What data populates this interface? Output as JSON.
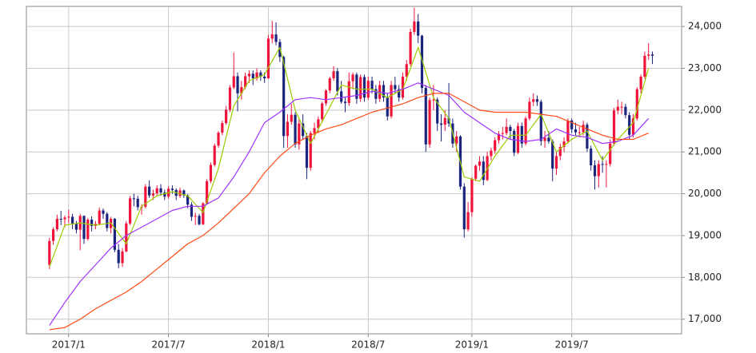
{
  "chart_data": {
    "type": "candlestick",
    "up_color": "#f0143c",
    "down_color": "#1a237e",
    "candles": [
      [
        18300,
        18950,
        18200,
        18870
      ],
      [
        18870,
        19200,
        18780,
        19150
      ],
      [
        19150,
        19500,
        19100,
        19400
      ],
      [
        19400,
        19590,
        19250,
        19390
      ],
      [
        19390,
        19480,
        19200,
        19430
      ],
      [
        19430,
        19620,
        19300,
        19450
      ],
      [
        19450,
        19520,
        19150,
        19290
      ],
      [
        19290,
        19350,
        19050,
        19140
      ],
      [
        19140,
        19520,
        18650,
        19470
      ],
      [
        19470,
        19480,
        18800,
        18920
      ],
      [
        18920,
        19420,
        18880,
        19380
      ],
      [
        19380,
        19460,
        19100,
        19230
      ],
      [
        19230,
        19350,
        19150,
        19280
      ],
      [
        19280,
        19670,
        19250,
        19600
      ],
      [
        19600,
        19650,
        19400,
        19520
      ],
      [
        19520,
        19560,
        19100,
        19180
      ],
      [
        19180,
        19450,
        19050,
        19400
      ],
      [
        19400,
        19420,
        18600,
        18660
      ],
      [
        18660,
        18800,
        18220,
        18340
      ],
      [
        18340,
        18700,
        18250,
        18620
      ],
      [
        18620,
        19350,
        18600,
        19290
      ],
      [
        19290,
        19950,
        19250,
        19890
      ],
      [
        19890,
        20000,
        19700,
        19880
      ],
      [
        19880,
        19950,
        19600,
        19680
      ],
      [
        19680,
        19750,
        19500,
        19690
      ],
      [
        19690,
        20230,
        19650,
        20170
      ],
      [
        20170,
        20320,
        19900,
        19960
      ],
      [
        19960,
        20100,
        19850,
        20010
      ],
      [
        20010,
        20200,
        19950,
        20130
      ],
      [
        20130,
        20230,
        19950,
        20030
      ],
      [
        20030,
        20100,
        19850,
        19930
      ],
      [
        19930,
        20180,
        19880,
        20120
      ],
      [
        20120,
        20200,
        20000,
        20090
      ],
      [
        20090,
        20130,
        19850,
        19950
      ],
      [
        19950,
        20150,
        19900,
        20080
      ],
      [
        20080,
        20100,
        19900,
        19960
      ],
      [
        19960,
        19990,
        19650,
        19740
      ],
      [
        19740,
        19800,
        19350,
        19450
      ],
      [
        19450,
        19550,
        19250,
        19470
      ],
      [
        19470,
        19520,
        19240,
        19270
      ],
      [
        19270,
        19800,
        19250,
        19770
      ],
      [
        19770,
        20350,
        19750,
        20300
      ],
      [
        20300,
        20750,
        20250,
        20690
      ],
      [
        20690,
        21200,
        20650,
        21150
      ],
      [
        21150,
        21500,
        21100,
        21460
      ],
      [
        21460,
        21750,
        21400,
        21690
      ],
      [
        21690,
        22100,
        21650,
        22010
      ],
      [
        22010,
        22600,
        21950,
        22540
      ],
      [
        22540,
        23380,
        22500,
        22810
      ],
      [
        22810,
        22900,
        21970,
        22400
      ],
      [
        22400,
        22700,
        22250,
        22550
      ],
      [
        22550,
        22900,
        22500,
        22810
      ],
      [
        22810,
        22950,
        22650,
        22870
      ],
      [
        22870,
        22950,
        22600,
        22760
      ],
      [
        22760,
        23000,
        22700,
        22900
      ],
      [
        22900,
        22950,
        22700,
        22800
      ],
      [
        22800,
        22900,
        22650,
        22760
      ],
      [
        22760,
        23800,
        22750,
        23710
      ],
      [
        23710,
        24130,
        23600,
        23810
      ],
      [
        23810,
        24100,
        23550,
        23630
      ],
      [
        23630,
        23700,
        23150,
        23270
      ],
      [
        23270,
        23300,
        21100,
        21380
      ],
      [
        21380,
        21900,
        21100,
        21720
      ],
      [
        21720,
        22150,
        21650,
        21890
      ],
      [
        21890,
        21950,
        21100,
        21180
      ],
      [
        21180,
        21800,
        21050,
        21680
      ],
      [
        21680,
        21900,
        21300,
        21380
      ],
      [
        21380,
        21450,
        20350,
        20620
      ],
      [
        20620,
        21500,
        20550,
        21450
      ],
      [
        21450,
        21700,
        21300,
        21570
      ],
      [
        21570,
        21850,
        21450,
        21780
      ],
      [
        21780,
        22200,
        21700,
        22160
      ],
      [
        22160,
        22500,
        22100,
        22470
      ],
      [
        22470,
        22800,
        22400,
        22760
      ],
      [
        22760,
        23050,
        22700,
        22930
      ],
      [
        22930,
        23000,
        22350,
        22450
      ],
      [
        22450,
        22700,
        22150,
        22200
      ],
      [
        22200,
        22300,
        21950,
        22170
      ],
      [
        22170,
        22900,
        22100,
        22690
      ],
      [
        22690,
        22900,
        22500,
        22850
      ],
      [
        22850,
        22900,
        22150,
        22270
      ],
      [
        22270,
        22850,
        22200,
        22790
      ],
      [
        22790,
        22850,
        22200,
        22300
      ],
      [
        22300,
        22800,
        22250,
        22700
      ],
      [
        22700,
        22800,
        22400,
        22500
      ],
      [
        22500,
        22600,
        22150,
        22270
      ],
      [
        22270,
        22700,
        22200,
        22600
      ],
      [
        22600,
        22700,
        22200,
        22300
      ],
      [
        22300,
        22400,
        21750,
        21850
      ],
      [
        21850,
        22700,
        21800,
        22600
      ],
      [
        22600,
        22800,
        22400,
        22500
      ],
      [
        22500,
        22600,
        22200,
        22300
      ],
      [
        22300,
        22900,
        22250,
        22800
      ],
      [
        22800,
        23200,
        22700,
        23100
      ],
      [
        23100,
        23950,
        23050,
        23870
      ],
      [
        23870,
        24450,
        23800,
        24120
      ],
      [
        24120,
        24300,
        23600,
        23780
      ],
      [
        23780,
        23800,
        22400,
        22530
      ],
      [
        22530,
        22600,
        21000,
        21180
      ],
      [
        21180,
        22300,
        21100,
        22240
      ],
      [
        22240,
        22600,
        22000,
        22250
      ],
      [
        22250,
        22300,
        21500,
        21680
      ],
      [
        21680,
        21900,
        21250,
        21650
      ],
      [
        21650,
        22000,
        21500,
        21810
      ],
      [
        21810,
        22650,
        21600,
        21680
      ],
      [
        21680,
        21800,
        21100,
        21200
      ],
      [
        21200,
        21500,
        21000,
        21370
      ],
      [
        21370,
        21400,
        20100,
        20170
      ],
      [
        20170,
        20250,
        18950,
        19150
      ],
      [
        19150,
        19800,
        19100,
        19560
      ],
      [
        19560,
        20400,
        19450,
        20360
      ],
      [
        20360,
        20700,
        20300,
        20670
      ],
      [
        20670,
        20900,
        20550,
        20770
      ],
      [
        20770,
        20900,
        20200,
        20330
      ],
      [
        20330,
        21000,
        20300,
        20900
      ],
      [
        20900,
        21100,
        20800,
        21030
      ],
      [
        21030,
        21350,
        20950,
        21280
      ],
      [
        21280,
        21500,
        21200,
        21430
      ],
      [
        21430,
        21600,
        21300,
        21450
      ],
      [
        21450,
        21800,
        21400,
        21600
      ],
      [
        21600,
        21650,
        21300,
        21500
      ],
      [
        21500,
        21550,
        20900,
        20980
      ],
      [
        20980,
        21700,
        20950,
        21620
      ],
      [
        21620,
        21700,
        21100,
        21200
      ],
      [
        21200,
        21850,
        21150,
        21800
      ],
      [
        21800,
        22300,
        21750,
        22200
      ],
      [
        22200,
        22400,
        22100,
        22260
      ],
      [
        22260,
        22350,
        22100,
        22200
      ],
      [
        22200,
        22250,
        21150,
        21260
      ],
      [
        21260,
        21500,
        21100,
        21340
      ],
      [
        21340,
        21500,
        21200,
        21250
      ],
      [
        21250,
        21300,
        20300,
        20600
      ],
      [
        20600,
        21000,
        20450,
        20900
      ],
      [
        20900,
        21200,
        20800,
        21120
      ],
      [
        21120,
        21350,
        21000,
        21250
      ],
      [
        21250,
        21800,
        21200,
        21750
      ],
      [
        21750,
        21800,
        21450,
        21540
      ],
      [
        21540,
        21700,
        21400,
        21470
      ],
      [
        21470,
        21600,
        21350,
        21470
      ],
      [
        21470,
        21750,
        21400,
        21650
      ],
      [
        21650,
        21700,
        21000,
        21080
      ],
      [
        21080,
        21150,
        20550,
        20680
      ],
      [
        20680,
        20800,
        20100,
        20420
      ],
      [
        20420,
        20800,
        20150,
        20710
      ],
      [
        20710,
        20900,
        20500,
        20700
      ],
      [
        20700,
        20800,
        20150,
        20710
      ],
      [
        20710,
        21300,
        20650,
        21200
      ],
      [
        21200,
        22050,
        21150,
        21990
      ],
      [
        21990,
        22250,
        21900,
        22080
      ],
      [
        22080,
        22200,
        21900,
        22080
      ],
      [
        22080,
        22150,
        21800,
        21880
      ],
      [
        21880,
        21950,
        21300,
        21410
      ],
      [
        21410,
        21900,
        21350,
        21800
      ],
      [
        21800,
        22550,
        21750,
        22500
      ],
      [
        22500,
        22850,
        22400,
        22800
      ],
      [
        22800,
        23400,
        22750,
        23300
      ],
      [
        23300,
        23600,
        23200,
        23330
      ],
      [
        23330,
        23400,
        23100,
        23300
      ]
    ],
    "lines": {
      "x": [
        0,
        4,
        8,
        12,
        16,
        20,
        24,
        28,
        32,
        36,
        40,
        44,
        48,
        52,
        56,
        60,
        64,
        68,
        72,
        76,
        80,
        84,
        88,
        92,
        96,
        100,
        104,
        108,
        112,
        116,
        120,
        124,
        128,
        132,
        136,
        140,
        144,
        148,
        152,
        156
      ],
      "series": [
        {
          "color": "#9acd00",
          "values": [
            18250,
            19250,
            19300,
            19250,
            19300,
            18800,
            19700,
            19950,
            20050,
            19950,
            19550,
            20600,
            22100,
            22700,
            22850,
            23500,
            22000,
            21200,
            21900,
            22600,
            22500,
            22500,
            22300,
            22500,
            23500,
            22300,
            21800,
            20400,
            20300,
            20900,
            21400,
            21400,
            21900,
            21000,
            21300,
            21500,
            20800,
            21300,
            21700,
            23000
          ]
        },
        {
          "color": "#a033ff",
          "values": [
            16850,
            17400,
            17900,
            18300,
            18700,
            19000,
            19200,
            19400,
            19600,
            19700,
            19700,
            19900,
            20400,
            21000,
            21700,
            21950,
            22250,
            22300,
            22250,
            22300,
            22350,
            22450,
            22400,
            22500,
            22650,
            22500,
            22350,
            21950,
            21700,
            21450,
            21300,
            21250,
            21300,
            21550,
            21400,
            21350,
            21200,
            21250,
            21400,
            21800
          ]
        },
        {
          "color": "#ff4a14",
          "values": [
            16750,
            16800,
            17000,
            17250,
            17450,
            17650,
            17900,
            18200,
            18500,
            18800,
            19000,
            19300,
            19650,
            20000,
            20500,
            20900,
            21200,
            21400,
            21550,
            21650,
            21800,
            21950,
            22050,
            22150,
            22300,
            22400,
            22400,
            22200,
            22000,
            21950,
            21950,
            21950,
            21900,
            21850,
            21700,
            21550,
            21400,
            21300,
            21300,
            21450
          ]
        }
      ]
    },
    "xlim": [
      -6,
      164.6
    ],
    "xticks": [
      {
        "value": 5,
        "label": "2017/1"
      },
      {
        "value": 31,
        "label": "2017/7"
      },
      {
        "value": 57,
        "label": "2018/1"
      },
      {
        "value": 83,
        "label": "2018/7"
      },
      {
        "value": 110,
        "label": "2019/1"
      },
      {
        "value": 136,
        "label": "2019/7"
      }
    ],
    "ylim": [
      16650,
      24480
    ],
    "yticks": [
      {
        "value": 17000,
        "label": "17,000"
      },
      {
        "value": 18000,
        "label": "18,000"
      },
      {
        "value": 19000,
        "label": "19,000"
      },
      {
        "value": 20000,
        "label": "20,000"
      },
      {
        "value": 21000,
        "label": "21,000"
      },
      {
        "value": 22000,
        "label": "22,000"
      },
      {
        "value": 23000,
        "label": "23,000"
      },
      {
        "value": 24000,
        "label": "24,000"
      }
    ],
    "grid": true
  }
}
